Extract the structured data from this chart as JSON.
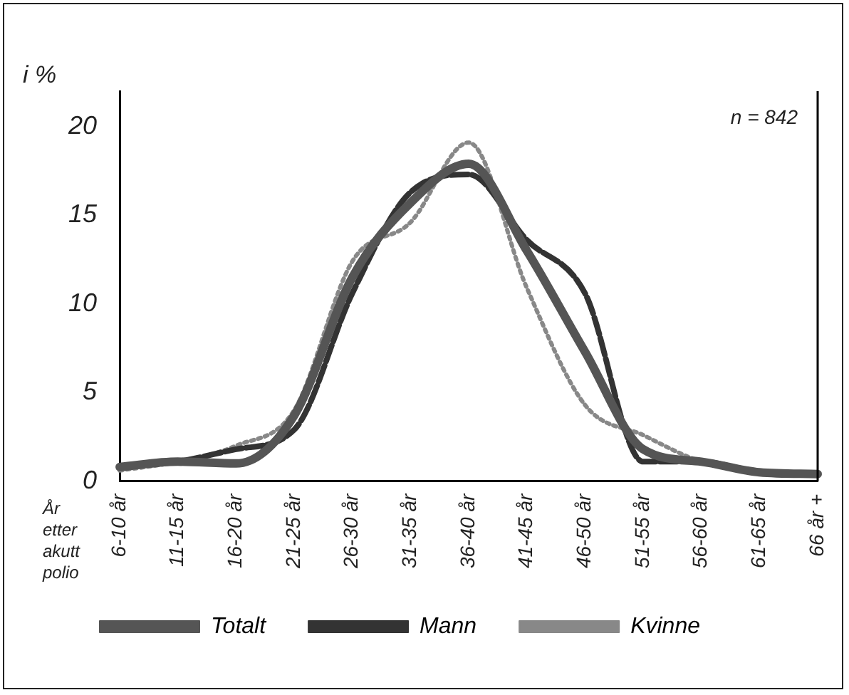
{
  "chart_data": {
    "type": "line",
    "ylabel": "i %",
    "xlabel": "År etter akutt polio",
    "categories": [
      "6-10 år",
      "11-15 år",
      "16-20 år",
      "21-25 år",
      "26-30 år",
      "31-35 år",
      "36-40 år",
      "41-45 år",
      "46-50 år",
      "51-55 år",
      "56-60 år",
      "61-65 år",
      "66 år +"
    ],
    "series": [
      {
        "name": "Totalt",
        "color": "#555555",
        "line_style": "solid",
        "values": [
          0.8,
          1.1,
          1.0,
          3.7,
          11.5,
          15.7,
          17.9,
          13.0,
          7.3,
          1.8,
          1.1,
          0.5,
          0.4
        ]
      },
      {
        "name": "Mann",
        "color": "#333333",
        "line_style": "dashed",
        "values": [
          0.8,
          1.1,
          1.8,
          2.9,
          10.6,
          16.3,
          17.3,
          13.6,
          10.6,
          1.1,
          1.1,
          0.5,
          0.4
        ]
      },
      {
        "name": "Kvinne",
        "color": "#888888",
        "line_style": "dotted",
        "values": [
          0.6,
          1.1,
          2.0,
          4.0,
          12.4,
          14.6,
          19.1,
          10.9,
          4.3,
          2.6,
          1.1,
          0.5,
          0.4
        ]
      }
    ],
    "ylim": [
      0,
      22
    ],
    "yticks": [
      0,
      5,
      10,
      15,
      20
    ],
    "grid": false,
    "legend": "bottom",
    "marker": "none",
    "annotations": [
      "n = 842"
    ]
  }
}
